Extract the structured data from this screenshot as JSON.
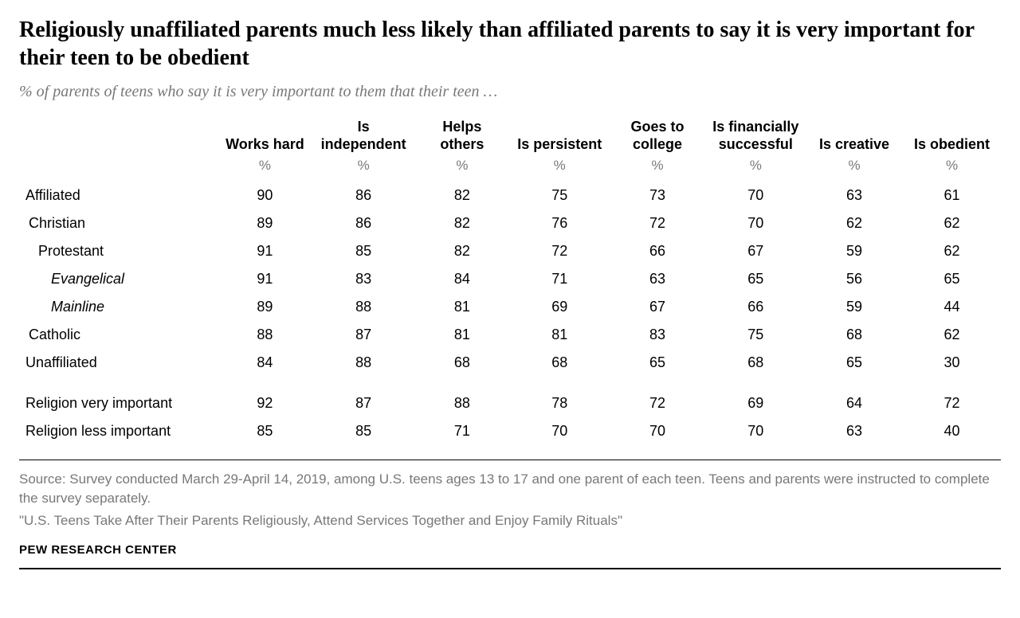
{
  "title": "Religiously unaffiliated parents much less likely than affiliated parents to say it is very important for their teen to be obedient",
  "subtitle": "% of parents of teens who say it is very important to them that their teen …",
  "columns": [
    {
      "label": "Works hard"
    },
    {
      "label": "Is independent"
    },
    {
      "label": "Helps others"
    },
    {
      "label": "Is persistent"
    },
    {
      "label": "Goes to college"
    },
    {
      "label": "Is financially successful"
    },
    {
      "label": "Is creative"
    },
    {
      "label": "Is obedient"
    }
  ],
  "pct": "%",
  "rows_group1": [
    {
      "label": "Affiliated",
      "indent": 0,
      "vals": [
        "90",
        "86",
        "82",
        "75",
        "73",
        "70",
        "63",
        "61"
      ]
    },
    {
      "label": "Christian",
      "indent": 1,
      "vals": [
        "89",
        "86",
        "82",
        "76",
        "72",
        "70",
        "62",
        "62"
      ]
    },
    {
      "label": "Protestant",
      "indent": 2,
      "vals": [
        "91",
        "85",
        "82",
        "72",
        "66",
        "67",
        "59",
        "62"
      ]
    },
    {
      "label": "Evangelical",
      "indent": 3,
      "vals": [
        "91",
        "83",
        "84",
        "71",
        "63",
        "65",
        "56",
        "65"
      ]
    },
    {
      "label": "Mainline",
      "indent": 3,
      "vals": [
        "89",
        "88",
        "81",
        "69",
        "67",
        "66",
        "59",
        "44"
      ]
    },
    {
      "label": "Catholic",
      "indent": 1,
      "vals": [
        "88",
        "87",
        "81",
        "81",
        "83",
        "75",
        "68",
        "62"
      ]
    },
    {
      "label": "Unaffiliated",
      "indent": 0,
      "vals": [
        "84",
        "88",
        "68",
        "68",
        "65",
        "68",
        "65",
        "30"
      ]
    }
  ],
  "rows_group2": [
    {
      "label": "Religion very important",
      "indent": 0,
      "vals": [
        "92",
        "87",
        "88",
        "78",
        "72",
        "69",
        "64",
        "72"
      ]
    },
    {
      "label": "Religion less important",
      "indent": 0,
      "vals": [
        "85",
        "85",
        "71",
        "70",
        "70",
        "70",
        "63",
        "40"
      ]
    }
  ],
  "source": "Source: Survey conducted March 29-April 14, 2019, among U.S. teens ages 13 to 17 and one parent of each teen. Teens and parents were instructed to complete the survey separately.",
  "quote": "\"U.S. Teens Take After Their Parents Religiously, Attend Services Together and Enjoy Family Rituals\"",
  "attribution": "PEW RESEARCH CENTER",
  "style": {
    "title_fontsize": 28,
    "subtitle_fontsize": 20,
    "body_fontsize": 18,
    "source_fontsize": 17,
    "attribution_fontsize": 15,
    "text_color": "#000000",
    "muted_color": "#787878",
    "background": "#ffffff",
    "rule_color": "#000000"
  }
}
